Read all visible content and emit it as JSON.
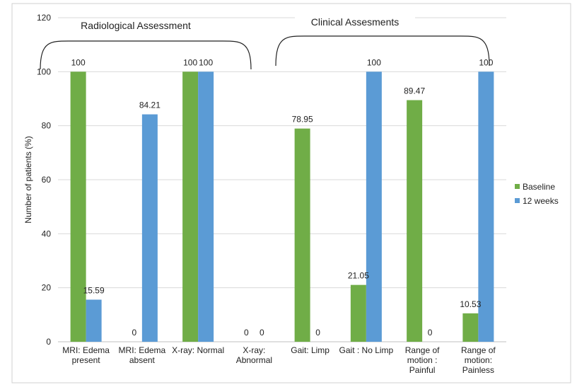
{
  "chart_data": {
    "type": "bar",
    "title": "",
    "ylabel": "Number of patients (%)",
    "xlabel": "",
    "ylim": [
      0,
      120
    ],
    "yticks": [
      "0",
      "20",
      "40",
      "60",
      "80",
      "100",
      "120"
    ],
    "grid": true,
    "legend_position": "right",
    "categories": [
      [
        "MRI: Edema",
        "present"
      ],
      [
        "MRI: Edema",
        "absent"
      ],
      [
        "X-ray: Normal"
      ],
      [
        "X-ray:",
        "Abnormal"
      ],
      [
        "Gait: Limp"
      ],
      [
        "Gait : No Limp"
      ],
      [
        "Range of",
        "motion :",
        "Painful"
      ],
      [
        "Range of",
        "motion:",
        "Painless"
      ]
    ],
    "series": [
      {
        "name": "Baseline",
        "color": "#70ad47",
        "values": [
          100,
          0,
          100,
          0,
          78.95,
          21.05,
          89.47,
          10.53
        ],
        "labels": [
          "100",
          "0",
          "100",
          "0",
          "78.95",
          "21.05",
          "89.47",
          "10.53"
        ]
      },
      {
        "name": "12 weeks",
        "color": "#5b9bd5",
        "values": [
          15.59,
          84.21,
          100,
          0,
          0,
          100,
          0,
          100
        ],
        "labels": [
          "15.59",
          "84.21",
          "100",
          "0",
          "0",
          "100",
          "0",
          "100"
        ]
      }
    ],
    "annotations": [
      {
        "text": "Radiological Assessment",
        "spans": [
          0,
          3
        ]
      },
      {
        "text": "Clinical Assesments",
        "spans": [
          4,
          7
        ]
      }
    ]
  }
}
